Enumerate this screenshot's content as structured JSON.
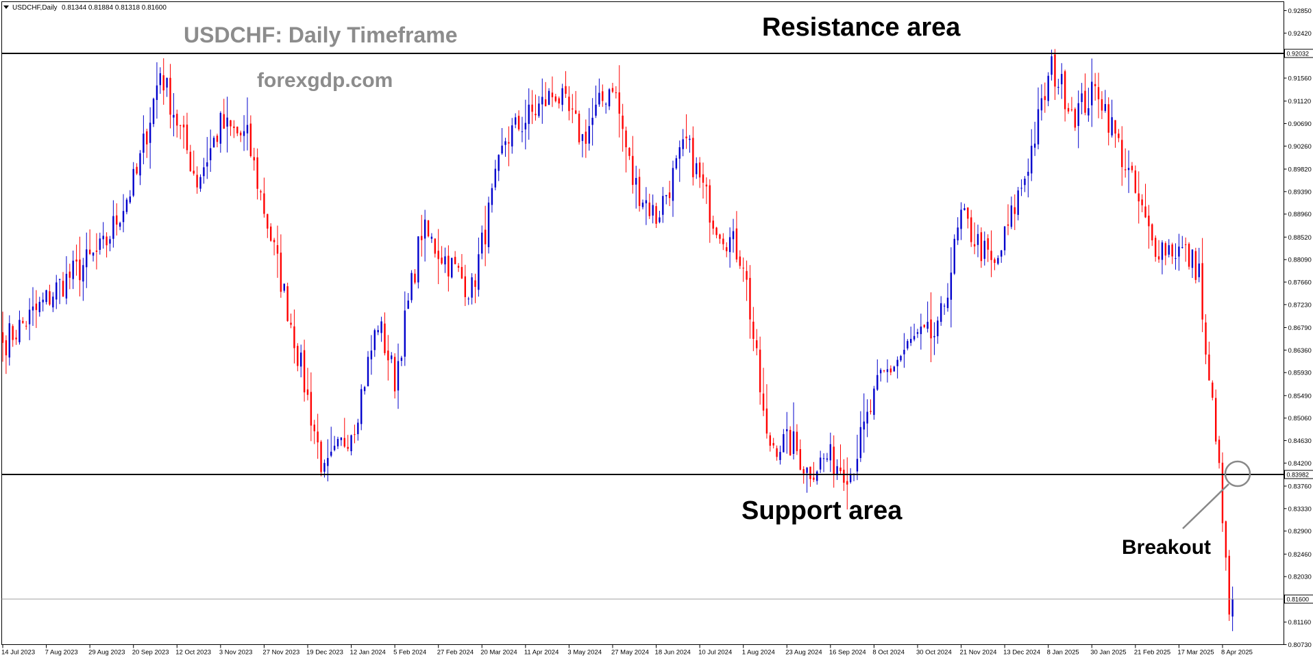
{
  "header": {
    "symbol": "USDCHF,Daily",
    "ohlc": "0.81344 0.81884 0.81318 0.81600"
  },
  "annotations": {
    "title": "USDCHF: Daily Timeframe",
    "watermark": "forexgdp.com",
    "resistance_label": "Resistance area",
    "support_label": "Support area",
    "breakout_label": "Breakout"
  },
  "colors": {
    "bull": "#0000cc",
    "bear": "#ff0000",
    "level_line": "#000000",
    "price_line": "#a0a0a0",
    "title_gray": "#8c8c8c",
    "axis": "#000000"
  },
  "chart_data": {
    "type": "candlestick",
    "symbol": "USDCHF",
    "timeframe": "Daily",
    "ylim": [
      0.8073,
      0.9302
    ],
    "y_ticks": [
      "0.92850",
      "0.92420",
      "0.91560",
      "0.91120",
      "0.90690",
      "0.90260",
      "0.89820",
      "0.89390",
      "0.88960",
      "0.88520",
      "0.88090",
      "0.87660",
      "0.87230",
      "0.86790",
      "0.86360",
      "0.85930",
      "0.85490",
      "0.85060",
      "0.84630",
      "0.84200",
      "0.83760",
      "0.83330",
      "0.82900",
      "0.82460",
      "0.82030",
      "0.81160",
      "0.80730"
    ],
    "x_ticks": [
      "14 Jul 2023",
      "7 Aug 2023",
      "29 Aug 2023",
      "20 Sep 2023",
      "12 Oct 2023",
      "3 Nov 2023",
      "27 Nov 2023",
      "19 Dec 2023",
      "12 Jan 2024",
      "5 Feb 2024",
      "27 Feb 2024",
      "20 Mar 2024",
      "11 Apr 2024",
      "3 May 2024",
      "27 May 2024",
      "18 Jun 2024",
      "10 Jul 2024",
      "1 Aug 2024",
      "23 Aug 2024",
      "16 Sep 2024",
      "8 Oct 2024",
      "30 Oct 2024",
      "21 Nov 2024",
      "13 Dec 2024",
      "8 Jan 2025",
      "30 Jan 2025",
      "21 Feb 2025",
      "17 Mar 2025",
      "8 Apr 2025"
    ],
    "levels": [
      {
        "name": "resistance",
        "value": "0.92032"
      },
      {
        "name": "support",
        "value": "0.83982"
      },
      {
        "name": "current",
        "value": "0.81600"
      }
    ],
    "anchors": [
      {
        "i": 0,
        "p": 0.865
      },
      {
        "i": 10,
        "p": 0.871
      },
      {
        "i": 17,
        "p": 0.876
      },
      {
        "i": 30,
        "p": 0.883
      },
      {
        "i": 40,
        "p": 0.897
      },
      {
        "i": 47,
        "p": 0.917
      },
      {
        "i": 58,
        "p": 0.896
      },
      {
        "i": 65,
        "p": 0.9065
      },
      {
        "i": 73,
        "p": 0.904
      },
      {
        "i": 86,
        "p": 0.869
      },
      {
        "i": 96,
        "p": 0.8395
      },
      {
        "i": 105,
        "p": 0.85
      },
      {
        "i": 112,
        "p": 0.869
      },
      {
        "i": 117,
        "p": 0.858
      },
      {
        "i": 125,
        "p": 0.8865
      },
      {
        "i": 140,
        "p": 0.875
      },
      {
        "i": 150,
        "p": 0.904
      },
      {
        "i": 165,
        "p": 0.913
      },
      {
        "i": 173,
        "p": 0.904
      },
      {
        "i": 182,
        "p": 0.915
      },
      {
        "i": 188,
        "p": 0.896
      },
      {
        "i": 195,
        "p": 0.889
      },
      {
        "i": 204,
        "p": 0.903
      },
      {
        "i": 212,
        "p": 0.889
      },
      {
        "i": 221,
        "p": 0.881
      },
      {
        "i": 228,
        "p": 0.846
      },
      {
        "i": 236,
        "p": 0.8455
      },
      {
        "i": 240,
        "p": 0.8405
      },
      {
        "i": 246,
        "p": 0.843
      },
      {
        "i": 253,
        "p": 0.8405
      },
      {
        "i": 262,
        "p": 0.858
      },
      {
        "i": 272,
        "p": 0.8655
      },
      {
        "i": 279,
        "p": 0.8665
      },
      {
        "i": 286,
        "p": 0.889
      },
      {
        "i": 296,
        "p": 0.879
      },
      {
        "i": 305,
        "p": 0.897
      },
      {
        "i": 313,
        "p": 0.9175
      },
      {
        "i": 320,
        "p": 0.909
      },
      {
        "i": 327,
        "p": 0.9135
      },
      {
        "i": 335,
        "p": 0.899
      },
      {
        "i": 343,
        "p": 0.884
      },
      {
        "i": 352,
        "p": 0.8825
      },
      {
        "i": 357,
        "p": 0.879
      },
      {
        "i": 359,
        "p": 0.861
      },
      {
        "i": 362,
        "p": 0.8485
      },
      {
        "i": 364,
        "p": 0.8305
      },
      {
        "i": 366,
        "p": 0.8135
      },
      {
        "i": 367,
        "p": 0.816
      }
    ]
  }
}
